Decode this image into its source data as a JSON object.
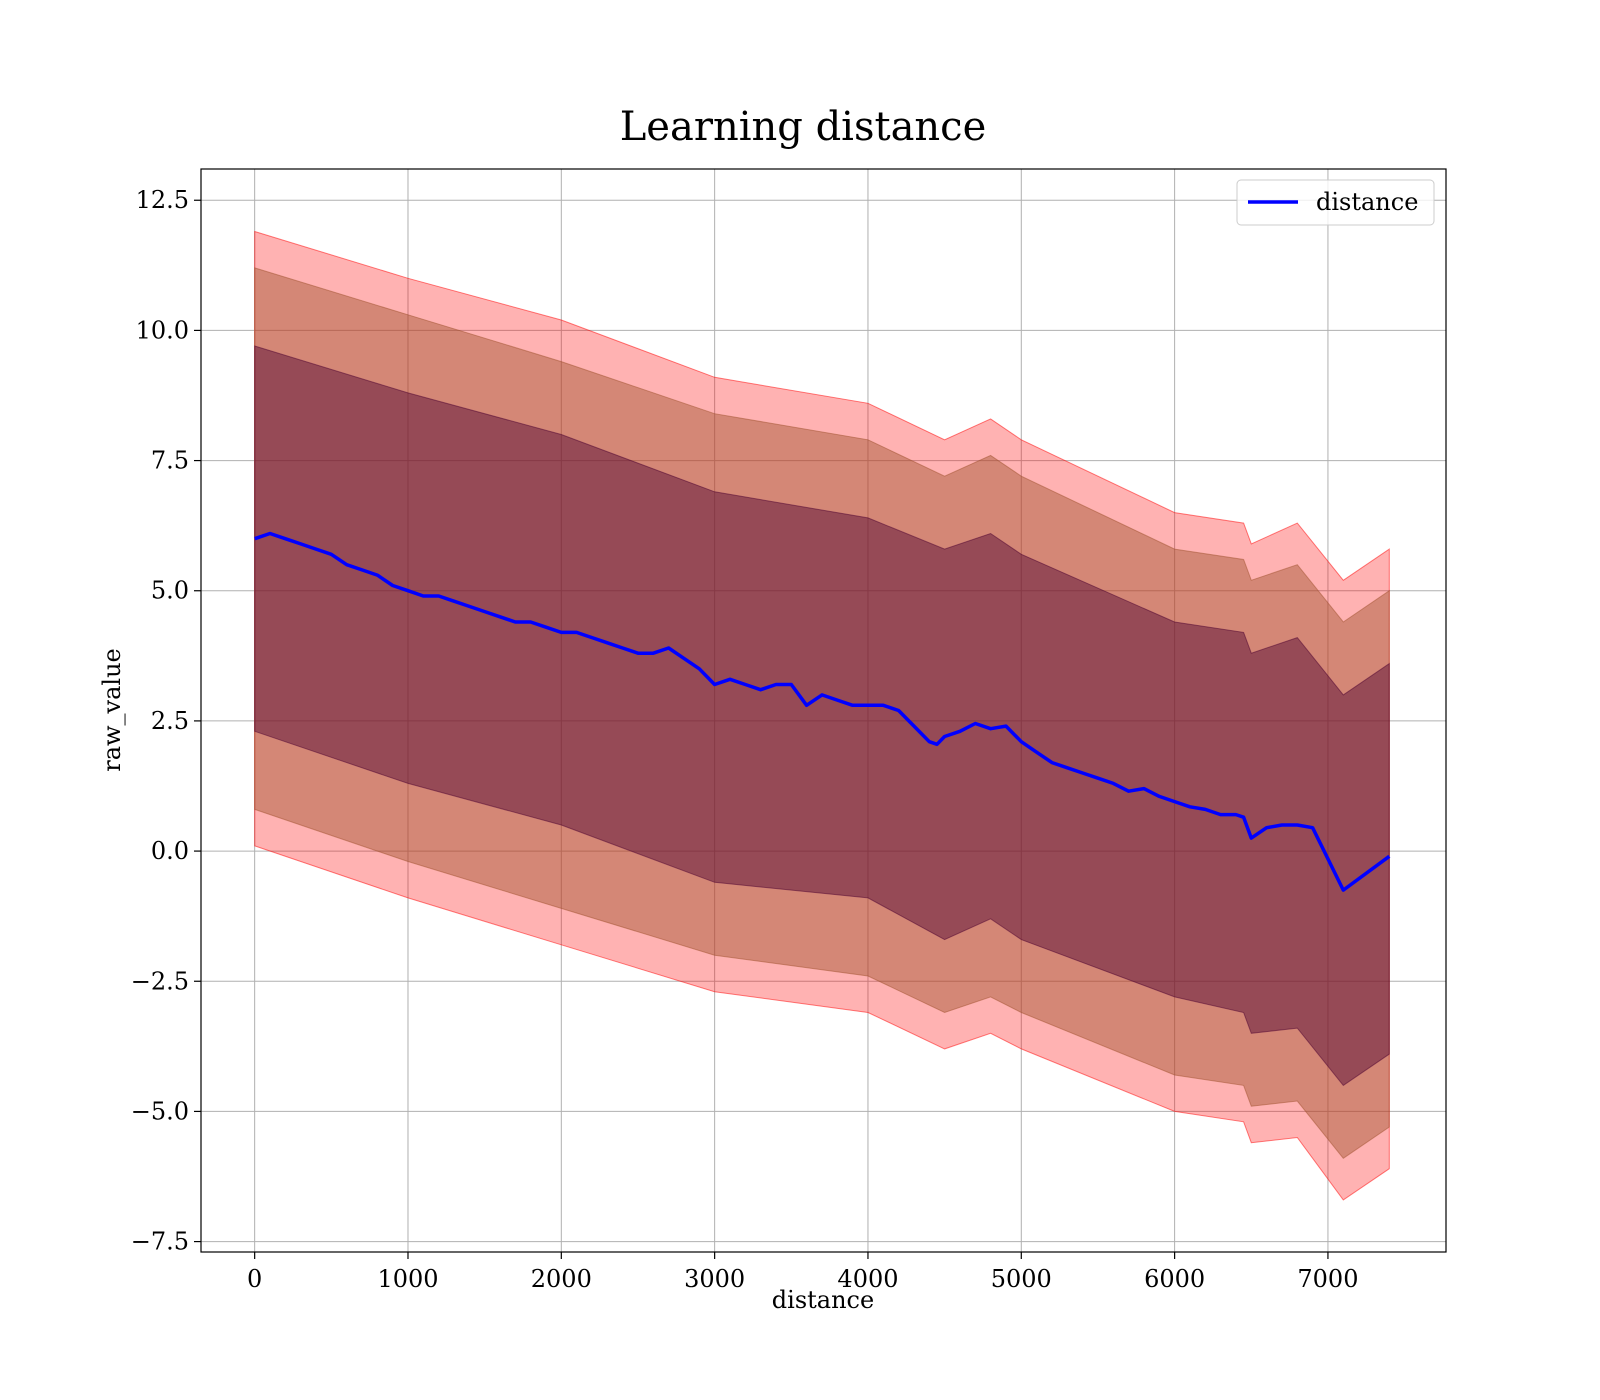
{
  "chart_data": {
    "type": "line",
    "title": "Learning distance",
    "xlabel": "distance",
    "ylabel": "raw_value",
    "xlim": [
      -350,
      7770
    ],
    "ylim": [
      -7.7,
      13.1
    ],
    "x_ticks": [
      0,
      1000,
      2000,
      3000,
      4000,
      5000,
      6000,
      7000
    ],
    "x_tick_labels": [
      "0",
      "1000",
      "2000",
      "3000",
      "4000",
      "5000",
      "6000",
      "7000"
    ],
    "y_ticks": [
      -7.5,
      -5.0,
      -2.5,
      0.0,
      2.5,
      5.0,
      7.5,
      10.0,
      12.5
    ],
    "y_tick_labels": [
      "−7.5",
      "−5.0",
      "−2.5",
      "0.0",
      "2.5",
      "5.0",
      "7.5",
      "10.0",
      "12.5"
    ],
    "grid": true,
    "legend": {
      "position": "upper-right",
      "entries": [
        "distance"
      ]
    },
    "colors": {
      "line": "#0000ff",
      "band_outer": "#ff0000",
      "band_middle": "#a0522d",
      "band_inner": "#4b0030"
    },
    "series": [
      {
        "name": "distance",
        "x": [
          0,
          100,
          200,
          300,
          400,
          500,
          600,
          700,
          800,
          900,
          1000,
          1100,
          1200,
          1300,
          1400,
          1500,
          1600,
          1700,
          1800,
          1900,
          2000,
          2100,
          2200,
          2300,
          2400,
          2500,
          2600,
          2700,
          2800,
          2900,
          3000,
          3100,
          3200,
          3300,
          3400,
          3500,
          3600,
          3700,
          3800,
          3900,
          4000,
          4100,
          4200,
          4300,
          4400,
          4450,
          4500,
          4600,
          4700,
          4800,
          4900,
          5000,
          5100,
          5200,
          5300,
          5400,
          5500,
          5600,
          5700,
          5800,
          5900,
          6000,
          6100,
          6200,
          6300,
          6400,
          6450,
          6500,
          6600,
          6700,
          6800,
          6900,
          7100,
          7400
        ],
        "y": [
          6.0,
          6.1,
          6.0,
          5.9,
          5.8,
          5.7,
          5.5,
          5.4,
          5.3,
          5.1,
          5.0,
          4.9,
          4.9,
          4.8,
          4.7,
          4.6,
          4.5,
          4.4,
          4.4,
          4.3,
          4.2,
          4.2,
          4.1,
          4.0,
          3.9,
          3.8,
          3.8,
          3.9,
          3.7,
          3.5,
          3.2,
          3.3,
          3.2,
          3.1,
          3.2,
          3.2,
          2.8,
          3.0,
          2.9,
          2.8,
          2.8,
          2.8,
          2.7,
          2.4,
          2.1,
          2.05,
          2.2,
          2.3,
          2.45,
          2.35,
          2.4,
          2.1,
          1.9,
          1.7,
          1.6,
          1.5,
          1.4,
          1.3,
          1.15,
          1.2,
          1.05,
          0.95,
          0.85,
          0.8,
          0.7,
          0.7,
          0.65,
          0.25,
          0.45,
          0.5,
          0.5,
          0.45,
          -0.75,
          -0.1
        ],
        "style": "line"
      }
    ],
    "bands": [
      {
        "x": [
          0,
          1000,
          2000,
          3000,
          4000,
          4500,
          4800,
          5000,
          6000,
          6450,
          6500,
          6800,
          7100,
          7400
        ],
        "upper": [
          11.9,
          11.0,
          10.2,
          9.1,
          8.6,
          7.9,
          8.3,
          7.9,
          6.5,
          6.3,
          5.9,
          6.3,
          5.2,
          5.8
        ],
        "lower": [
          0.1,
          -0.9,
          -1.8,
          -2.7,
          -3.1,
          -3.8,
          -3.5,
          -3.8,
          -5.0,
          -5.2,
          -5.6,
          -5.5,
          -6.7,
          -6.1
        ]
      },
      {
        "x": [
          0,
          1000,
          2000,
          3000,
          4000,
          4500,
          4800,
          5000,
          6000,
          6450,
          6500,
          6800,
          7100,
          7400
        ],
        "upper": [
          11.2,
          10.3,
          9.4,
          8.4,
          7.9,
          7.2,
          7.6,
          7.2,
          5.8,
          5.6,
          5.2,
          5.5,
          4.4,
          5.0
        ],
        "lower": [
          0.8,
          -0.2,
          -1.1,
          -2.0,
          -2.4,
          -3.1,
          -2.8,
          -3.1,
          -4.3,
          -4.5,
          -4.9,
          -4.8,
          -5.9,
          -5.3
        ]
      },
      {
        "x": [
          0,
          1000,
          2000,
          3000,
          4000,
          4500,
          4800,
          5000,
          6000,
          6450,
          6500,
          6800,
          7100,
          7400
        ],
        "upper": [
          9.7,
          8.8,
          8.0,
          6.9,
          6.4,
          5.8,
          6.1,
          5.7,
          4.4,
          4.2,
          3.8,
          4.1,
          3.0,
          3.6
        ],
        "lower": [
          2.3,
          1.3,
          0.5,
          -0.6,
          -0.9,
          -1.7,
          -1.3,
          -1.7,
          -2.8,
          -3.1,
          -3.5,
          -3.4,
          -4.5,
          -3.9
        ]
      }
    ]
  }
}
